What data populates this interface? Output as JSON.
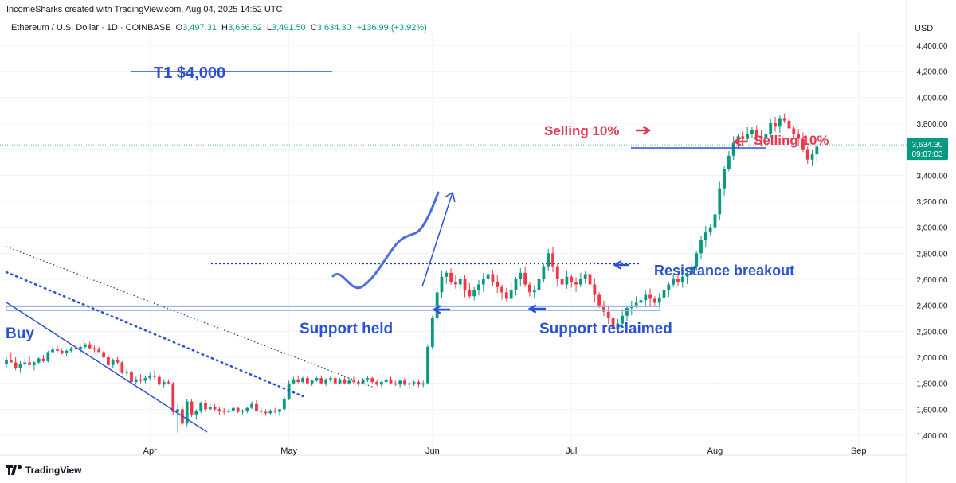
{
  "header": {
    "credit": "IncomeSharks created with TradingView.com, Aug 04, 2025 14:52 UTC",
    "symbol": "Ethereum / U.S. Dollar · 1D · COINBASE",
    "open_label": "O",
    "open": "3,497.31",
    "high_label": "H",
    "high": "3,666.62",
    "low_label": "L",
    "low": "3,491.50",
    "close_label": "C",
    "close": "3,634.30",
    "change": "+136.99 (+3.92%)",
    "currency": "USD"
  },
  "price_tag": {
    "price": "3,634.30",
    "countdown": "09:07:03"
  },
  "footer": {
    "brand": "TradingView"
  },
  "colors": {
    "up": "#089981",
    "down": "#f23645",
    "annotation_blue": "#2962ff",
    "annotation_red": "#e53950",
    "support_zone": "#9fb5e8"
  },
  "chart_data": {
    "type": "candlestick",
    "y_axis": {
      "min": 1400,
      "max": 4400,
      "ticks": [
        "4,400.00",
        "4,200.00",
        "4,000.00",
        "3,800.00",
        "3,600.00",
        "3,400.00",
        "3,200.00",
        "3,000.00",
        "2,800.00",
        "2,600.00",
        "2,400.00",
        "2,200.00",
        "2,000.00",
        "1,800.00",
        "1,600.00",
        "1,400.00"
      ],
      "tick_values": [
        4400,
        4200,
        4000,
        3800,
        3600,
        3400,
        3200,
        3000,
        2800,
        2600,
        2400,
        2200,
        2000,
        1800,
        1600,
        1400
      ]
    },
    "x_axis": {
      "start": "2025-03-01",
      "end": "2025-09-10",
      "labels": [
        "Apr",
        "May",
        "Jun",
        "Jul",
        "Aug",
        "Sep"
      ],
      "label_dates": [
        "2025-04-01",
        "2025-05-01",
        "2025-06-01",
        "2025-07-01",
        "2025-08-01",
        "2025-09-01"
      ]
    },
    "ohlc": [
      [
        "2025-03-01",
        1950,
        2000,
        1920,
        1980
      ],
      [
        "2025-03-02",
        1980,
        2040,
        1960,
        1960
      ],
      [
        "2025-03-03",
        1960,
        2000,
        1900,
        1920
      ],
      [
        "2025-03-04",
        1920,
        1970,
        1880,
        1950
      ],
      [
        "2025-03-05",
        1950,
        1990,
        1930,
        1960
      ],
      [
        "2025-03-06",
        1960,
        2010,
        1940,
        1940
      ],
      [
        "2025-03-07",
        1940,
        1970,
        1900,
        1960
      ],
      [
        "2025-03-08",
        1960,
        2000,
        1950,
        1990
      ],
      [
        "2025-03-09",
        1990,
        2020,
        1960,
        1970
      ],
      [
        "2025-03-10",
        1970,
        2050,
        1960,
        2040
      ],
      [
        "2025-03-11",
        2040,
        2080,
        2030,
        2060
      ],
      [
        "2025-03-12",
        2060,
        2090,
        2040,
        2050
      ],
      [
        "2025-03-13",
        2050,
        2070,
        2020,
        2030
      ],
      [
        "2025-03-14",
        2030,
        2060,
        2010,
        2050
      ],
      [
        "2025-03-15",
        2050,
        2080,
        2040,
        2070
      ],
      [
        "2025-03-16",
        2070,
        2100,
        2060,
        2060
      ],
      [
        "2025-03-17",
        2060,
        2090,
        2040,
        2080
      ],
      [
        "2025-03-18",
        2080,
        2110,
        2070,
        2100
      ],
      [
        "2025-03-19",
        2100,
        2120,
        2060,
        2070
      ],
      [
        "2025-03-20",
        2070,
        2090,
        2040,
        2060
      ],
      [
        "2025-03-21",
        2060,
        2080,
        2040,
        2040
      ],
      [
        "2025-03-22",
        2040,
        2050,
        1990,
        2000
      ],
      [
        "2025-03-23",
        2000,
        2020,
        1930,
        1940
      ],
      [
        "2025-03-24",
        1940,
        1990,
        1920,
        1980
      ],
      [
        "2025-03-25",
        1980,
        2000,
        1950,
        1960
      ],
      [
        "2025-03-26",
        1960,
        1970,
        1870,
        1880
      ],
      [
        "2025-03-27",
        1880,
        1910,
        1860,
        1890
      ],
      [
        "2025-03-28",
        1890,
        1900,
        1800,
        1810
      ],
      [
        "2025-03-29",
        1810,
        1850,
        1790,
        1830
      ],
      [
        "2025-03-30",
        1830,
        1870,
        1800,
        1820
      ],
      [
        "2025-03-31",
        1820,
        1860,
        1800,
        1840
      ],
      [
        "2025-04-01",
        1840,
        1880,
        1820,
        1860
      ],
      [
        "2025-04-02",
        1860,
        1900,
        1830,
        1850
      ],
      [
        "2025-04-03",
        1850,
        1870,
        1780,
        1790
      ],
      [
        "2025-04-04",
        1790,
        1830,
        1770,
        1810
      ],
      [
        "2025-04-05",
        1810,
        1830,
        1790,
        1800
      ],
      [
        "2025-04-06",
        1800,
        1810,
        1560,
        1580
      ],
      [
        "2025-04-07",
        1580,
        1640,
        1420,
        1600
      ],
      [
        "2025-04-08",
        1600,
        1620,
        1480,
        1490
      ],
      [
        "2025-04-09",
        1490,
        1680,
        1470,
        1660
      ],
      [
        "2025-04-10",
        1660,
        1680,
        1540,
        1560
      ],
      [
        "2025-04-11",
        1560,
        1600,
        1520,
        1590
      ],
      [
        "2025-04-12",
        1590,
        1660,
        1570,
        1650
      ],
      [
        "2025-04-13",
        1650,
        1670,
        1580,
        1600
      ],
      [
        "2025-04-14",
        1600,
        1650,
        1590,
        1620
      ],
      [
        "2025-04-15",
        1620,
        1640,
        1590,
        1600
      ],
      [
        "2025-04-16",
        1600,
        1620,
        1560,
        1590
      ],
      [
        "2025-04-17",
        1590,
        1610,
        1560,
        1580
      ],
      [
        "2025-04-18",
        1580,
        1600,
        1570,
        1590
      ],
      [
        "2025-04-19",
        1590,
        1620,
        1580,
        1610
      ],
      [
        "2025-04-20",
        1610,
        1620,
        1570,
        1580
      ],
      [
        "2025-04-21",
        1580,
        1600,
        1560,
        1590
      ],
      [
        "2025-04-22",
        1590,
        1620,
        1570,
        1610
      ],
      [
        "2025-04-23",
        1610,
        1660,
        1600,
        1640
      ],
      [
        "2025-04-24",
        1640,
        1670,
        1580,
        1590
      ],
      [
        "2025-04-25",
        1590,
        1610,
        1560,
        1580
      ],
      [
        "2025-04-26",
        1580,
        1600,
        1550,
        1570
      ],
      [
        "2025-04-27",
        1570,
        1600,
        1560,
        1590
      ],
      [
        "2025-04-28",
        1590,
        1610,
        1570,
        1580
      ],
      [
        "2025-04-29",
        1580,
        1600,
        1550,
        1600
      ],
      [
        "2025-04-30",
        1600,
        1700,
        1590,
        1680
      ],
      [
        "2025-05-01",
        1680,
        1820,
        1670,
        1800
      ],
      [
        "2025-05-02",
        1800,
        1850,
        1790,
        1830
      ],
      [
        "2025-05-03",
        1830,
        1860,
        1800,
        1810
      ],
      [
        "2025-05-04",
        1810,
        1850,
        1800,
        1840
      ],
      [
        "2025-05-05",
        1840,
        1860,
        1790,
        1800
      ],
      [
        "2025-05-06",
        1800,
        1830,
        1780,
        1820
      ],
      [
        "2025-05-07",
        1820,
        1850,
        1810,
        1840
      ],
      [
        "2025-05-08",
        1840,
        1860,
        1790,
        1800
      ],
      [
        "2025-05-09",
        1800,
        1840,
        1780,
        1830
      ],
      [
        "2025-05-10",
        1830,
        1860,
        1810,
        1840
      ],
      [
        "2025-05-11",
        1840,
        1860,
        1790,
        1800
      ],
      [
        "2025-05-12",
        1800,
        1840,
        1790,
        1830
      ],
      [
        "2025-05-13",
        1830,
        1850,
        1790,
        1800
      ],
      [
        "2025-05-14",
        1800,
        1840,
        1790,
        1820
      ],
      [
        "2025-05-15",
        1820,
        1850,
        1800,
        1810
      ],
      [
        "2025-05-16",
        1810,
        1830,
        1780,
        1800
      ],
      [
        "2025-05-17",
        1800,
        1840,
        1790,
        1830
      ],
      [
        "2025-05-18",
        1830,
        1860,
        1810,
        1840
      ],
      [
        "2025-05-19",
        1840,
        1850,
        1800,
        1810
      ],
      [
        "2025-05-20",
        1810,
        1830,
        1780,
        1790
      ],
      [
        "2025-05-21",
        1790,
        1820,
        1770,
        1810
      ],
      [
        "2025-05-22",
        1810,
        1840,
        1800,
        1830
      ],
      [
        "2025-05-23",
        1830,
        1850,
        1790,
        1800
      ],
      [
        "2025-05-24",
        1800,
        1820,
        1780,
        1790
      ],
      [
        "2025-05-25",
        1790,
        1830,
        1770,
        1820
      ],
      [
        "2025-05-26",
        1820,
        1840,
        1780,
        1790
      ],
      [
        "2025-05-27",
        1790,
        1810,
        1760,
        1800
      ],
      [
        "2025-05-28",
        1800,
        1820,
        1780,
        1810
      ],
      [
        "2025-05-29",
        1810,
        1830,
        1770,
        1790
      ],
      [
        "2025-05-30",
        1790,
        1820,
        1770,
        1800
      ],
      [
        "2025-05-31",
        1800,
        2100,
        1790,
        2080
      ]
    ],
    "annotations": [
      {
        "type": "label",
        "text": "T1 $4,000",
        "price": 4180,
        "date": "2025-05-01",
        "style": "strikethrough-line"
      },
      {
        "type": "label",
        "text": "Buy",
        "price": 2180,
        "date": "2025-03-02"
      },
      {
        "type": "label",
        "text": "Support held",
        "price": 2270,
        "date": "2025-05-10"
      },
      {
        "type": "label",
        "text": "Support reclaimed",
        "price": 2270,
        "date": "2025-06-22"
      },
      {
        "type": "label",
        "text": "Resistance breakout",
        "price": 2670,
        "date": "2025-07-17"
      },
      {
        "type": "label",
        "text": "Selling 10%",
        "price": 3770,
        "date": "2025-07-02"
      },
      {
        "type": "label",
        "text": "Selling 10%",
        "price": 3620,
        "date": "2025-08-06"
      }
    ],
    "levels": [
      {
        "name": "support-zone",
        "from": 2360,
        "to": 2390
      },
      {
        "name": "resistance",
        "price": 2720,
        "style": "dotted"
      },
      {
        "name": "sell-line",
        "price": 3610
      }
    ],
    "grid": true,
    "last_price": 3634.3
  }
}
